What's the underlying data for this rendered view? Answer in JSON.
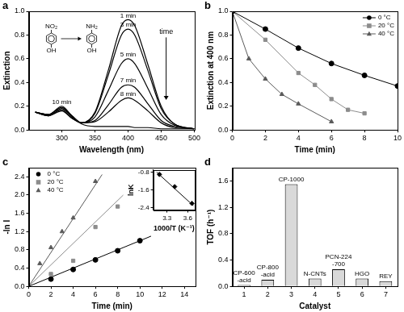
{
  "chart_data": [
    {
      "type": "line",
      "title": "a",
      "x_label": "Wavelength (nm)",
      "y_label": "Extinction",
      "x": [
        260,
        280,
        300,
        315,
        330,
        350,
        370,
        390,
        400,
        410,
        430,
        450,
        470,
        500
      ],
      "series": [
        {
          "name": "1 min",
          "color": "#000000",
          "marker": "none",
          "line_style": "solid",
          "values": [
            0.15,
            0.12,
            0.16,
            0.1,
            0.06,
            0.15,
            0.5,
            0.88,
            0.93,
            0.88,
            0.55,
            0.2,
            0.05,
            0.01
          ]
        },
        {
          "name": "3 min",
          "color": "#000000",
          "marker": "none",
          "line_style": "solid",
          "values": [
            0.15,
            0.12,
            0.17,
            0.1,
            0.06,
            0.14,
            0.46,
            0.8,
            0.85,
            0.8,
            0.5,
            0.18,
            0.05,
            0.01
          ]
        },
        {
          "name": "5 min",
          "color": "#000000",
          "marker": "none",
          "line_style": "solid",
          "values": [
            0.15,
            0.12,
            0.18,
            0.11,
            0.06,
            0.11,
            0.33,
            0.56,
            0.6,
            0.56,
            0.35,
            0.13,
            0.04,
            0.01
          ]
        },
        {
          "name": "7 min",
          "color": "#000000",
          "marker": "none",
          "line_style": "solid",
          "values": [
            0.15,
            0.13,
            0.19,
            0.12,
            0.06,
            0.08,
            0.21,
            0.36,
            0.38,
            0.36,
            0.22,
            0.08,
            0.03,
            0.01
          ]
        },
        {
          "name": "8 min",
          "color": "#000000",
          "marker": "none",
          "line_style": "solid",
          "values": [
            0.15,
            0.13,
            0.19,
            0.12,
            0.06,
            0.07,
            0.15,
            0.25,
            0.27,
            0.25,
            0.16,
            0.06,
            0.02,
            0.01
          ]
        },
        {
          "name": "10 min",
          "color": "#000000",
          "marker": "none",
          "line_style": "solid",
          "values": [
            0.15,
            0.13,
            0.2,
            0.12,
            0.05,
            0.03,
            0.03,
            0.03,
            0.03,
            0.02,
            0.02,
            0.01,
            0.01,
            0.01
          ]
        }
      ],
      "xlim": [
        250,
        500
      ],
      "xticks": [
        300,
        350,
        400,
        450,
        500
      ],
      "ylim": [
        0,
        1
      ],
      "yticks": [
        {
          "value": 0,
          "label": "0.0"
        },
        {
          "value": 0.2,
          "label": "0.2"
        },
        {
          "value": 0.4,
          "label": "0.4"
        },
        {
          "value": 0.6,
          "label": "0.6"
        },
        {
          "value": 0.8,
          "label": "0.8"
        },
        {
          "value": 1,
          "label": "1.0"
        }
      ],
      "grid": false,
      "legend": "inline",
      "reaction": {
        "reactant": {
          "top": "NO₂",
          "bottom": "OH"
        },
        "product": {
          "top": "NH₂",
          "bottom": "OH"
        }
      },
      "arrow_label": "time"
    },
    {
      "type": "line",
      "title": "b",
      "x_label": "Time (min)",
      "y_label": "Extinction at 400 nm",
      "series": [
        {
          "name": "0 °C",
          "color": "#000000",
          "marker": "circle",
          "line_style": "solid",
          "x": [
            0,
            2,
            4,
            6,
            8,
            10
          ],
          "values": [
            1.0,
            0.85,
            0.69,
            0.56,
            0.46,
            0.37
          ]
        },
        {
          "name": "20 °C",
          "color": "#8c8c8c",
          "marker": "square",
          "line_style": "solid",
          "x": [
            0,
            2,
            4,
            5,
            6,
            7,
            8
          ],
          "values": [
            1.0,
            0.76,
            0.48,
            0.38,
            0.26,
            0.17,
            0.14
          ]
        },
        {
          "name": "40 °C",
          "color": "#5a5a5a",
          "marker": "triangle",
          "line_style": "solid",
          "x": [
            0,
            1,
            2,
            3,
            4,
            6
          ],
          "values": [
            1.0,
            0.6,
            0.43,
            0.3,
            0.22,
            0.07
          ]
        }
      ],
      "xlim": [
        0,
        10
      ],
      "xticks": [
        0,
        2,
        4,
        6,
        8,
        10
      ],
      "ylim": [
        0,
        1
      ],
      "yticks": [
        {
          "value": 0,
          "label": "0.0"
        },
        {
          "value": 0.2,
          "label": "0.2"
        },
        {
          "value": 0.4,
          "label": "0.4"
        },
        {
          "value": 0.6,
          "label": "0.6"
        },
        {
          "value": 0.8,
          "label": "0.8"
        },
        {
          "value": 1,
          "label": "1.0"
        }
      ],
      "grid": false,
      "legend": "top-right"
    },
    {
      "type": "scatter",
      "title": "c",
      "x_label": "Time (min)",
      "y_label": "-ln I",
      "series": [
        {
          "name": "0 °C",
          "color": "#000000",
          "marker": "circle",
          "x": [
            2,
            4,
            6,
            8,
            10
          ],
          "values": [
            0.16,
            0.37,
            0.58,
            0.78,
            1.0
          ],
          "fit_x": [
            0,
            11
          ],
          "fit_values": [
            0,
            1.1
          ]
        },
        {
          "name": "20 °C",
          "color": "#8c8c8c",
          "marker": "square",
          "x": [
            2,
            4,
            6,
            8
          ],
          "values": [
            0.27,
            0.56,
            1.3,
            1.75
          ],
          "fit_x": [
            0,
            8.5
          ],
          "fit_values": [
            0,
            2.0
          ]
        },
        {
          "name": "40 °C",
          "color": "#5a5a5a",
          "marker": "triangle",
          "x": [
            1,
            2,
            3,
            4,
            6
          ],
          "values": [
            0.5,
            0.85,
            1.2,
            1.5,
            2.3
          ],
          "fit_x": [
            0,
            6.6
          ],
          "fit_values": [
            0,
            2.45
          ]
        }
      ],
      "xlim": [
        0,
        15
      ],
      "xticks": [
        0,
        2,
        4,
        6,
        8,
        10,
        12,
        14
      ],
      "ylim": [
        0,
        2.6
      ],
      "yticks": [
        {
          "value": 0,
          "label": "0.0"
        },
        {
          "value": 0.4,
          "label": "0.4"
        },
        {
          "value": 0.8,
          "label": "0.8"
        },
        {
          "value": 1.2,
          "label": "1.2"
        },
        {
          "value": 1.6,
          "label": "1.6"
        },
        {
          "value": 2.0,
          "label": "2.0"
        },
        {
          "value": 2.4,
          "label": "2.4"
        }
      ],
      "grid": false,
      "legend": "top-left",
      "inset": {
        "type": "scatter",
        "x_label": "1000/T (K⁻¹)",
        "y_label": "lnK",
        "color": "#000000",
        "marker": "diamond",
        "x": [
          3.19,
          3.41,
          3.66
        ],
        "values": [
          -0.9,
          -1.45,
          -2.2
        ],
        "fit_x": [
          3.15,
          3.68
        ],
        "fit_values": [
          -0.8,
          -2.3
        ],
        "xlim": [
          3.1,
          3.7
        ],
        "xticks": [
          3.3,
          3.6
        ],
        "ylim": [
          -2.5,
          -0.7
        ],
        "yticks": [
          -0.8,
          -1.6,
          -2.4
        ],
        "grid": false
      }
    },
    {
      "type": "bar",
      "title": "d",
      "x_label": "Catalyst",
      "y_label": "TOF (h⁻¹)",
      "categories": [
        "1",
        "2",
        "3",
        "4",
        "5",
        "6",
        "7"
      ],
      "values": [
        0.02,
        0.1,
        1.55,
        0.12,
        0.26,
        0.12,
        0.08
      ],
      "bar_labels": [
        [
          "CP-600",
          "-acid"
        ],
        [
          "CP-800",
          "-acid"
        ],
        [
          "CP-1000"
        ],
        [
          "N-CNTs"
        ],
        [
          "PCN-224",
          "-700"
        ],
        [
          "HGO"
        ],
        [
          "REY"
        ]
      ],
      "color": "#d9d9d9",
      "ylim": [
        0,
        1.8
      ],
      "yticks": [
        {
          "value": 0,
          "label": "0.0"
        },
        {
          "value": 0.4,
          "label": "0.4"
        },
        {
          "value": 0.8,
          "label": "0.8"
        },
        {
          "value": 1.2,
          "label": "1.2"
        },
        {
          "value": 1.6,
          "label": "1.6"
        }
      ],
      "grid": false
    }
  ]
}
